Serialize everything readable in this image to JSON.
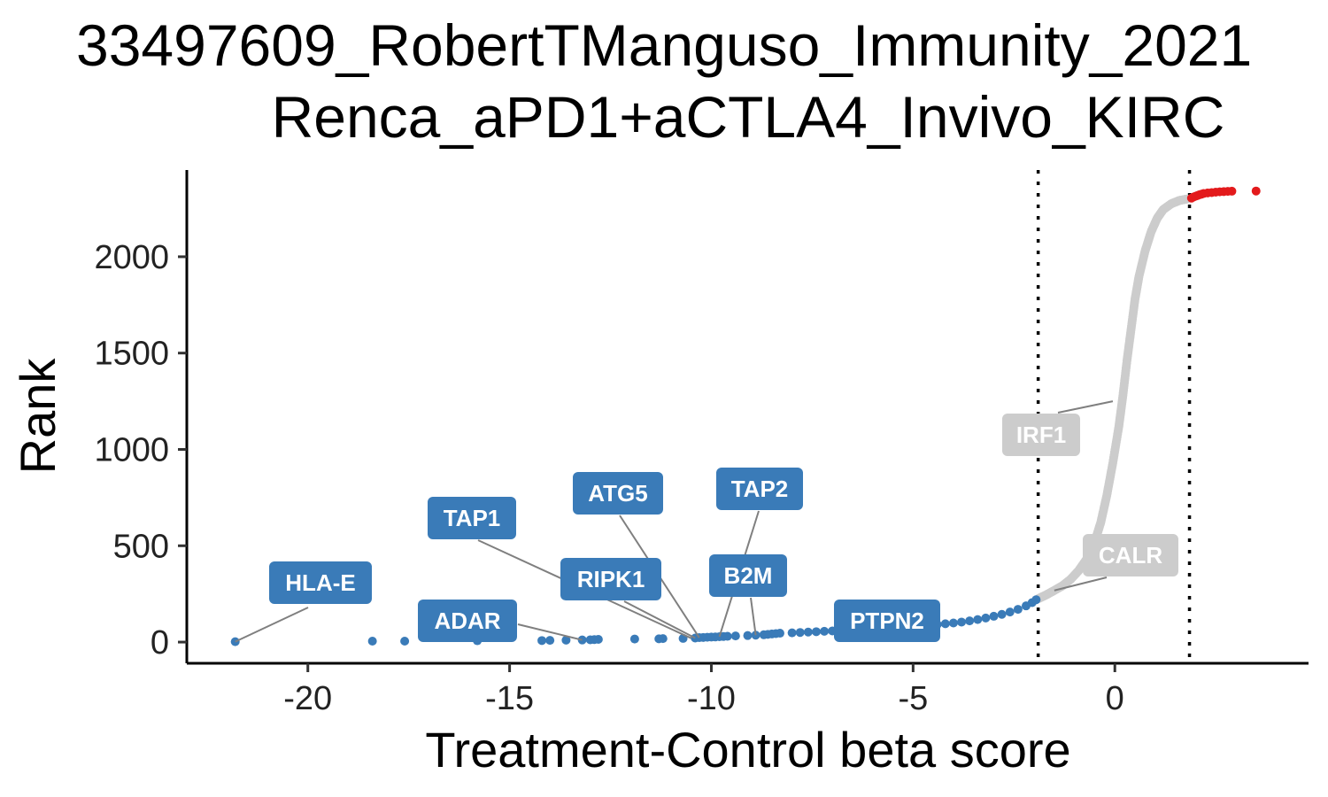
{
  "chart_data": {
    "type": "scatter",
    "title_lines": [
      "33497609_RobertTManguso_Immunity_2021",
      "Renca_aPD1+aCTLA4_Invivo_KIRC"
    ],
    "xlabel": "Treatment-Control beta score",
    "ylabel": "Rank",
    "xlim": [
      -23,
      4.8
    ],
    "ylim": [
      -110,
      2450
    ],
    "x_ticks": [
      -20,
      -15,
      -10,
      -5,
      0
    ],
    "x_tick_labels": [
      "-20",
      "-15",
      "-10",
      "-5",
      "0"
    ],
    "y_ticks": [
      0,
      500,
      1000,
      1500,
      2000
    ],
    "y_tick_labels": [
      "0",
      "500",
      "1000",
      "1500",
      "2000"
    ],
    "thresholds": [
      -1.9,
      1.85
    ],
    "colors": {
      "negative": "#3a7bb8",
      "neutral": "#cccccc",
      "positive": "#e31a1c"
    },
    "series": {
      "negative_points": [
        [
          -21.8,
          2
        ],
        [
          -18.4,
          5
        ],
        [
          -17.6,
          5
        ],
        [
          -15.8,
          7
        ],
        [
          -14.2,
          8
        ],
        [
          -14.0,
          9
        ],
        [
          -13.6,
          10
        ],
        [
          -13.2,
          11
        ],
        [
          -13.0,
          12
        ],
        [
          -12.9,
          13
        ],
        [
          -12.8,
          14
        ],
        [
          -11.9,
          16
        ],
        [
          -11.3,
          17
        ],
        [
          -11.2,
          18
        ],
        [
          -10.7,
          19
        ],
        [
          -10.4,
          21
        ],
        [
          -10.3,
          23
        ],
        [
          -10.2,
          24
        ],
        [
          -10.1,
          25
        ],
        [
          -10.0,
          26
        ],
        [
          -9.9,
          27
        ],
        [
          -9.8,
          28
        ],
        [
          -9.7,
          29
        ],
        [
          -9.6,
          30
        ],
        [
          -9.4,
          32
        ],
        [
          -9.1,
          34
        ],
        [
          -8.9,
          36
        ],
        [
          -8.7,
          38
        ],
        [
          -8.6,
          40
        ],
        [
          -8.5,
          42
        ],
        [
          -8.4,
          44
        ],
        [
          -8.3,
          46
        ],
        [
          -8.0,
          48
        ],
        [
          -7.8,
          50
        ],
        [
          -7.6,
          52
        ],
        [
          -7.4,
          54
        ],
        [
          -7.2,
          56
        ],
        [
          -7.0,
          58
        ],
        [
          -6.8,
          60
        ],
        [
          -6.6,
          62
        ],
        [
          -6.4,
          64
        ],
        [
          -6.2,
          66
        ],
        [
          -6.0,
          68
        ],
        [
          -5.8,
          70
        ],
        [
          -5.6,
          72
        ],
        [
          -5.4,
          75
        ],
        [
          -5.2,
          78
        ],
        [
          -5.0,
          81
        ],
        [
          -4.8,
          84
        ],
        [
          -4.6,
          87
        ],
        [
          -4.4,
          91
        ],
        [
          -4.2,
          95
        ],
        [
          -4.0,
          99
        ],
        [
          -3.8,
          104
        ],
        [
          -3.6,
          110
        ],
        [
          -3.4,
          117
        ],
        [
          -3.2,
          125
        ],
        [
          -3.0,
          134
        ],
        [
          -2.8,
          144
        ],
        [
          -2.6,
          156
        ],
        [
          -2.4,
          170
        ],
        [
          -2.2,
          188
        ],
        [
          -2.05,
          205
        ],
        [
          -1.95,
          220
        ]
      ],
      "neutral_curve": [
        [
          -1.9,
          225
        ],
        [
          -1.7,
          245
        ],
        [
          -1.5,
          268
        ],
        [
          -1.3,
          292
        ],
        [
          -1.1,
          325
        ],
        [
          -0.9,
          370
        ],
        [
          -0.7,
          430
        ],
        [
          -0.5,
          520
        ],
        [
          -0.35,
          620
        ],
        [
          -0.2,
          760
        ],
        [
          -0.05,
          930
        ],
        [
          0.1,
          1120
        ],
        [
          0.2,
          1280
        ],
        [
          0.3,
          1460
        ],
        [
          0.4,
          1620
        ],
        [
          0.5,
          1780
        ],
        [
          0.6,
          1900
        ],
        [
          0.75,
          2030
        ],
        [
          0.9,
          2130
        ],
        [
          1.05,
          2200
        ],
        [
          1.2,
          2245
        ],
        [
          1.4,
          2275
        ],
        [
          1.6,
          2292
        ],
        [
          1.8,
          2300
        ]
      ],
      "positive_points": [
        [
          1.9,
          2304
        ],
        [
          1.95,
          2310
        ],
        [
          2.0,
          2314
        ],
        [
          2.05,
          2318
        ],
        [
          2.1,
          2322
        ],
        [
          2.15,
          2325
        ],
        [
          2.2,
          2328
        ],
        [
          2.3,
          2331
        ],
        [
          2.4,
          2333
        ],
        [
          2.5,
          2335
        ],
        [
          2.6,
          2337
        ],
        [
          2.7,
          2338
        ],
        [
          2.8,
          2339
        ],
        [
          2.9,
          2340
        ],
        [
          3.5,
          2341
        ]
      ]
    },
    "annotations": [
      {
        "text": "HLA-E",
        "x": -21.8,
        "y": 2,
        "fill": "#3a7bb8"
      },
      {
        "text": "ADAR",
        "x": -13.2,
        "y": 11,
        "fill": "#3a7bb8"
      },
      {
        "text": "TAP1",
        "x": -10.5,
        "y": 20,
        "fill": "#3a7bb8"
      },
      {
        "text": "ATG5",
        "x": -10.3,
        "y": 23,
        "fill": "#3a7bb8"
      },
      {
        "text": "RIPK1",
        "x": -10.4,
        "y": 21,
        "fill": "#3a7bb8"
      },
      {
        "text": "TAP2",
        "x": -9.8,
        "y": 28,
        "fill": "#3a7bb8"
      },
      {
        "text": "B2M",
        "x": -8.9,
        "y": 36,
        "fill": "#3a7bb8"
      },
      {
        "text": "PTPN2",
        "x": -6.0,
        "y": 68,
        "fill": "#3a7bb8"
      },
      {
        "text": "IRF1",
        "x": -0.05,
        "y": 1250,
        "fill": "#cccccc"
      },
      {
        "text": "CALR",
        "x": -1.5,
        "y": 268,
        "fill": "#cccccc"
      }
    ]
  }
}
